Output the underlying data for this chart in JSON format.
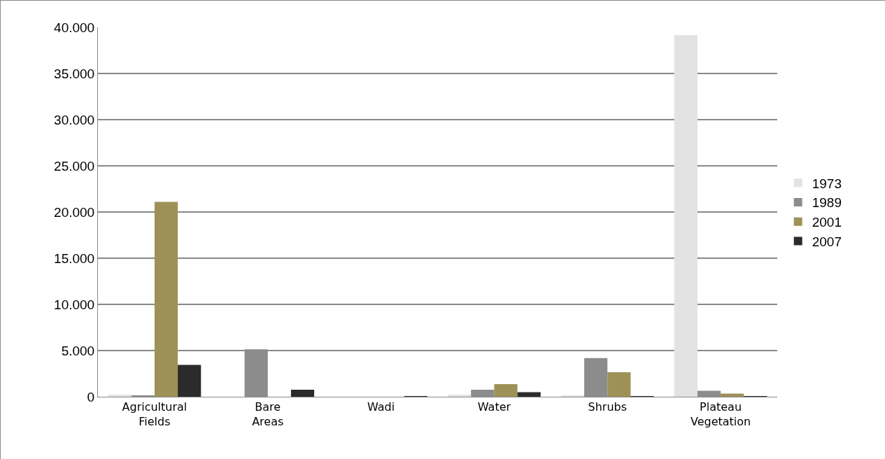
{
  "chart_data": {
    "type": "bar",
    "categories": [
      "Agricultural Fields",
      "Bare Areas",
      "Wadi",
      "Water",
      "Shrubs",
      "Plateau Vegetation"
    ],
    "series": [
      {
        "name": "1973",
        "color": "#e3e3e3",
        "values": [
          230,
          null,
          null,
          230,
          100,
          39150
        ]
      },
      {
        "name": "1989",
        "color": "#8c8c8c",
        "values": [
          120,
          5140,
          null,
          760,
          4180,
          650
        ]
      },
      {
        "name": "2001",
        "color": "#9e9158",
        "values": [
          21100,
          null,
          null,
          1370,
          2660,
          350
        ]
      },
      {
        "name": "2007",
        "color": "#2b2b2b",
        "values": [
          3440,
          760,
          20,
          500,
          60,
          30
        ]
      }
    ],
    "ylim": [
      0,
      40000
    ],
    "yticks": [
      {
        "value": 0,
        "label": "0"
      },
      {
        "value": 5000,
        "label": "5.000"
      },
      {
        "value": 10000,
        "label": "10.000"
      },
      {
        "value": 15000,
        "label": "15.000"
      },
      {
        "value": 20000,
        "label": "20.000"
      },
      {
        "value": 25000,
        "label": "25.000"
      },
      {
        "value": 30000,
        "label": "30.000"
      },
      {
        "value": 35000,
        "label": "35.000"
      },
      {
        "value": 40000,
        "label": "40.000"
      }
    ],
    "grid": "y",
    "legend": "right"
  }
}
